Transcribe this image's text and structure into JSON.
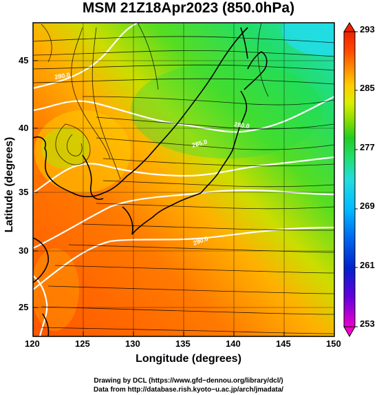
{
  "title": "MSM 21Z18Apr2023 (850.0hPa)",
  "x_axis": {
    "label": "Longitude (degrees)",
    "range": [
      120,
      150
    ],
    "ticks": [
      "120",
      "125",
      "130",
      "135",
      "140",
      "145",
      "150"
    ]
  },
  "y_axis": {
    "label": "Latitude  (degrees)",
    "range": [
      22.4,
      47.6
    ],
    "ticks": [
      "25",
      "30",
      "35",
      "40",
      "45"
    ]
  },
  "colorbar": {
    "range": [
      253,
      293
    ],
    "ticks": [
      "253",
      "261",
      "269",
      "277",
      "285",
      "293"
    ],
    "colors": [
      "#ee00cc",
      "#6600dd",
      "#0022cc",
      "#0066ee",
      "#00bbff",
      "#22dddd",
      "#22dd66",
      "#22cc22",
      "#88dd00",
      "#ddee00",
      "#ffcc00",
      "#ff8800",
      "#ff4400",
      "#ee2200"
    ]
  },
  "field": {
    "variable": "temperature",
    "contour_labels": [
      "280.0",
      "285.0",
      "290.0"
    ]
  },
  "credits": {
    "line1": "Drawing by DCL (https://www.gfd−dennou.org/library/dcl/)",
    "line2": "Data from http://database.rish.kyoto−u.ac.jp/arch/jmadata/"
  }
}
